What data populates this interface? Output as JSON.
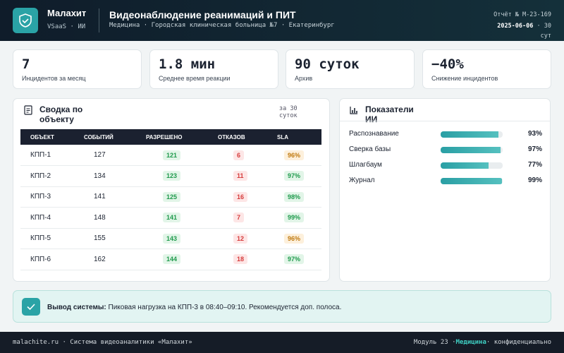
{
  "header": {
    "brand": "Малахит",
    "tagline": "VSaaS · ИИ",
    "title": "Видеонаблюдение реанимаций и ПИТ",
    "subtitle": "Медицина · Городская клиническая больница №7 · Екатеринбург",
    "report": "Отчёт № M-23-169",
    "date": "2025-06-06",
    "period": "· 30 сут"
  },
  "kpis": [
    {
      "value": "7",
      "label": "Инцидентов за месяц"
    },
    {
      "value": "1.8 мин",
      "label": "Среднее время реакции"
    },
    {
      "value": "90 суток",
      "label": "Архив"
    },
    {
      "value": "−40%",
      "label": "Снижение инцидентов"
    }
  ],
  "summary": {
    "title": "Сводка по объекту",
    "period": "за 30 суток",
    "columns": [
      "ОБЪЕКТ",
      "СОБЫТИЙ",
      "РАЗРЕШЕНО",
      "ОТКАЗОВ",
      "SLA"
    ],
    "rows": [
      [
        "КПП-1",
        127,
        121,
        6,
        "96%"
      ],
      [
        "КПП-2",
        134,
        123,
        11,
        "97%"
      ],
      [
        "КПП-3",
        141,
        125,
        16,
        "98%"
      ],
      [
        "КПП-4",
        148,
        141,
        7,
        "99%"
      ],
      [
        "КПП-5",
        155,
        143,
        12,
        "96%"
      ],
      [
        "КПП-6",
        162,
        144,
        18,
        "97%"
      ]
    ]
  },
  "ai": {
    "title": "Показатели ИИ",
    "metrics": [
      {
        "name": "Распознавание",
        "value": 93,
        "label": "93%"
      },
      {
        "name": "Сверка базы",
        "value": 97,
        "label": "97%"
      },
      {
        "name": "Шлагбаум",
        "value": 77,
        "label": "77%"
      },
      {
        "name": "Журнал",
        "value": 99,
        "label": "99%"
      }
    ]
  },
  "alert": {
    "label": "Вывод системы:",
    "text": "Пиковая нагрузка на КПП-3 в 08:40–09:10. Рекомендуется доп. полоса."
  },
  "footer": {
    "left": "malachite.ru · Система видеоаналитики «Малахит»",
    "module": "Модуль 23 ·",
    "domain": "Медицина",
    "right": "· конфиденциально"
  }
}
